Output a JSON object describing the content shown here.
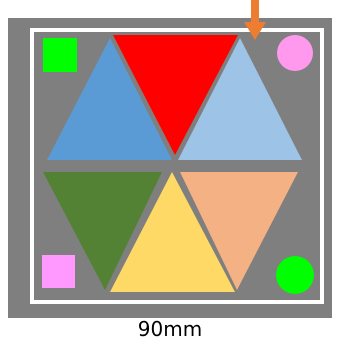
{
  "dimension_label": "90mm"
}
